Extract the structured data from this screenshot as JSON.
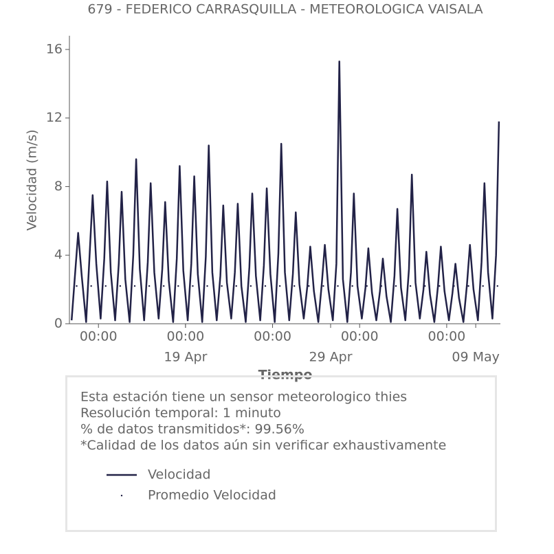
{
  "chart_data": {
    "type": "line",
    "title": "679 - FEDERICO CARRASQUILLA - METEOROLOGICA VAISALA",
    "ylabel": "Velocidad (m/s)",
    "xlabel": "Tiempo",
    "xlim": [
      11,
      40.7
    ],
    "ylim": [
      0,
      16.8
    ],
    "yticks": [
      0,
      4,
      8,
      12,
      16
    ],
    "xticks": [
      {
        "value": 13,
        "label": "00:00"
      },
      {
        "value": 19,
        "label": "00:00"
      },
      {
        "value": 25,
        "label": "00:00"
      },
      {
        "value": 31,
        "label": "00:00"
      },
      {
        "value": 37,
        "label": "00:00"
      }
    ],
    "xticks2": [
      {
        "value": 19,
        "label": "19 Apr"
      },
      {
        "value": 29,
        "label": "29 Apr"
      },
      {
        "value": 39,
        "label": "09 May"
      }
    ],
    "annotations": [
      "Esta estación tiene un sensor meteorologico thies",
      "Resolución temporal: 1 minuto",
      "% de datos transmitidos*: 99.56%",
      "*Calidad de los datos aún sin verificar exhaustivamente"
    ],
    "series": [
      {
        "name": "Velocidad",
        "color": "#222247",
        "style": "line",
        "x": [
          11.15,
          11.4,
          11.6,
          11.85,
          12.15,
          12.4,
          12.6,
          12.85,
          13.15,
          13.4,
          13.6,
          13.85,
          14.15,
          14.4,
          14.6,
          14.85,
          15.15,
          15.4,
          15.6,
          15.85,
          16.15,
          16.4,
          16.6,
          16.85,
          17.15,
          17.4,
          17.6,
          17.85,
          18.15,
          18.4,
          18.6,
          18.85,
          19.15,
          19.4,
          19.6,
          19.85,
          20.15,
          20.4,
          20.6,
          20.85,
          21.15,
          21.4,
          21.6,
          21.85,
          22.15,
          22.4,
          22.6,
          22.85,
          23.15,
          23.4,
          23.6,
          23.85,
          24.15,
          24.4,
          24.6,
          24.85,
          25.15,
          25.4,
          25.6,
          25.85,
          26.15,
          26.4,
          26.6,
          26.85,
          27.15,
          27.4,
          27.6,
          27.85,
          28.15,
          28.4,
          28.6,
          28.85,
          29.15,
          29.4,
          29.6,
          29.85,
          30.15,
          30.4,
          30.6,
          30.85,
          31.15,
          31.4,
          31.6,
          31.85,
          32.15,
          32.4,
          32.6,
          32.85,
          33.15,
          33.4,
          33.6,
          33.85,
          34.15,
          34.4,
          34.6,
          34.85,
          35.15,
          35.4,
          35.6,
          35.85,
          36.15,
          36.4,
          36.6,
          36.85,
          37.15,
          37.4,
          37.6,
          37.85,
          38.15,
          38.4,
          38.6,
          38.85,
          39.15,
          39.4,
          39.6,
          39.85,
          40.15,
          40.4,
          40.6
        ],
        "values": [
          0.2,
          3.0,
          5.3,
          2.8,
          0.1,
          4.2,
          7.5,
          3.5,
          0.3,
          3.8,
          8.3,
          3.0,
          0.2,
          3.5,
          7.7,
          2.6,
          0.1,
          4.0,
          9.6,
          3.2,
          0.2,
          3.6,
          8.2,
          3.0,
          0.3,
          3.2,
          7.1,
          2.5,
          0.1,
          3.8,
          9.2,
          3.1,
          0.2,
          3.5,
          8.6,
          2.9,
          0.1,
          3.9,
          10.4,
          3.0,
          0.2,
          2.8,
          6.9,
          2.4,
          0.3,
          3.0,
          7.0,
          2.2,
          0.1,
          3.3,
          7.6,
          2.8,
          0.2,
          3.4,
          7.9,
          2.9,
          0.1,
          4.1,
          10.5,
          3.0,
          0.2,
          2.9,
          6.5,
          2.3,
          0.3,
          2.2,
          4.5,
          1.9,
          0.1,
          2.4,
          4.6,
          2.0,
          0.2,
          3.5,
          15.3,
          2.6,
          0.1,
          3.0,
          7.6,
          2.2,
          0.3,
          2.1,
          4.4,
          1.8,
          0.2,
          1.9,
          3.8,
          1.6,
          0.1,
          2.8,
          6.7,
          2.1,
          0.2,
          3.2,
          8.7,
          2.4,
          0.3,
          2.0,
          4.2,
          1.7,
          0.1,
          2.2,
          4.5,
          1.9,
          0.2,
          1.8,
          3.5,
          1.5,
          0.1,
          2.3,
          4.6,
          2.0,
          0.2,
          3.6,
          8.2,
          3.0,
          0.3,
          4.0,
          11.8
        ]
      },
      {
        "name": "Promedio Velocidad",
        "color": "#222247",
        "style": "dots",
        "x": [
          11.5,
          12.5,
          13.5,
          14.5,
          15.5,
          16.5,
          17.5,
          18.5,
          19.5,
          20.5,
          21.5,
          22.5,
          23.5,
          24.5,
          25.5,
          26.5,
          27.5,
          28.5,
          29.5,
          30.5,
          31.5,
          32.5,
          33.5,
          34.5,
          35.5,
          36.5,
          37.5,
          38.5,
          39.5,
          40.5
        ],
        "values": [
          2.2,
          2.2,
          2.2,
          2.2,
          2.2,
          2.2,
          2.2,
          2.2,
          2.2,
          2.2,
          2.2,
          2.2,
          2.2,
          2.2,
          2.2,
          2.2,
          2.2,
          2.2,
          2.2,
          2.2,
          2.2,
          2.2,
          2.2,
          2.2,
          2.2,
          2.2,
          2.2,
          2.2,
          2.2,
          2.2
        ]
      }
    ]
  }
}
